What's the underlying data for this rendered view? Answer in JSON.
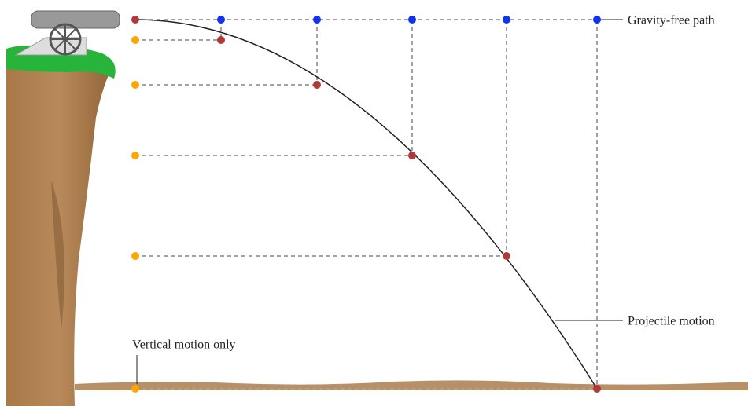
{
  "labels": {
    "gravity_free": "Gravity-free path",
    "projectile": "Projectile motion",
    "vertical": "Vertical motion only"
  }
}
